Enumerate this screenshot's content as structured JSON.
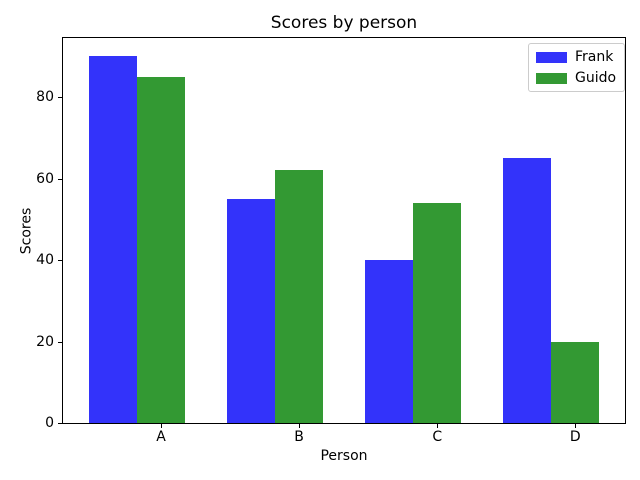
{
  "chart_data": {
    "type": "bar",
    "title": "Scores by person",
    "xlabel": "Person",
    "ylabel": "Scores",
    "categories": [
      "A",
      "B",
      "C",
      "D"
    ],
    "series": [
      {
        "name": "Frank",
        "color": "#3333fa",
        "values": [
          90,
          55,
          40,
          65
        ]
      },
      {
        "name": "Guido",
        "color": "#339933",
        "values": [
          85,
          62,
          54,
          20
        ]
      }
    ],
    "yticks": [
      0,
      20,
      40,
      60,
      80
    ],
    "ylim": [
      0,
      94.5
    ],
    "xlim": [
      -0.36,
      3.71
    ],
    "bar_width": 0.35,
    "xtick_offset": 0.35,
    "legend_position": "upper right",
    "grid": false,
    "background_color": "#ffffff",
    "spine_color": "#000000",
    "text_color": "#000000"
  }
}
